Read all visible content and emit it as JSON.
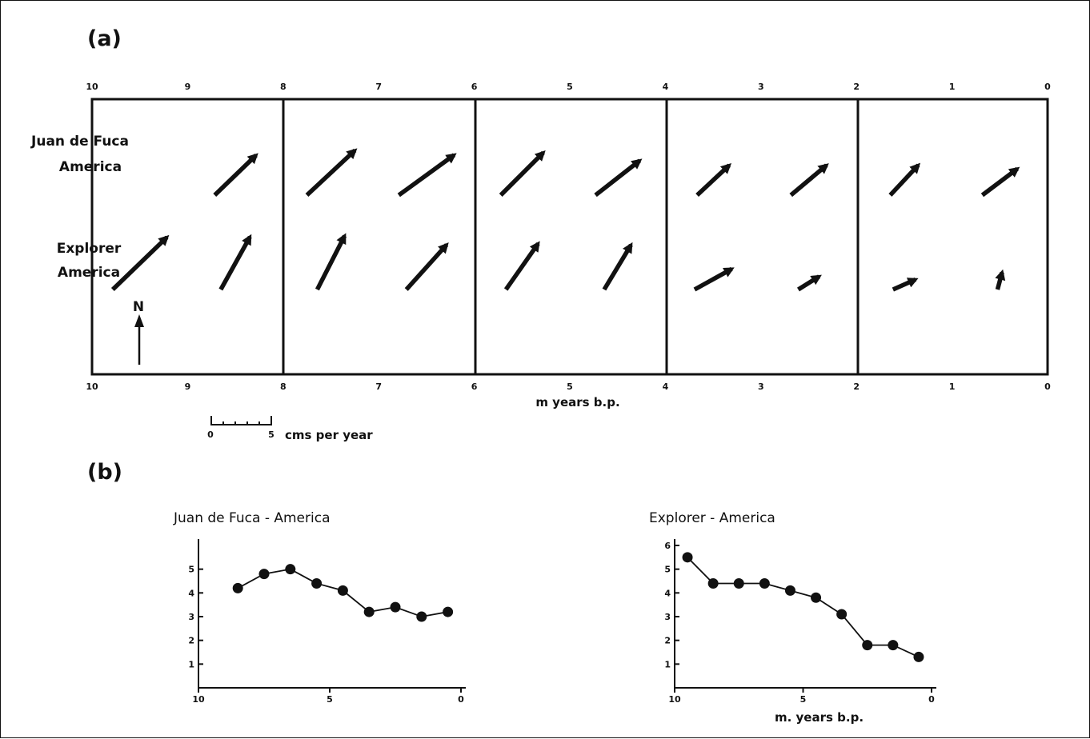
{
  "panel_a": {
    "label": "(a)",
    "top_axis_ticks": [
      "10",
      "9",
      "8",
      "7",
      "6",
      "5",
      "4",
      "3",
      "2",
      "1",
      "0"
    ],
    "bottom_axis_ticks": [
      "10",
      "9",
      "8",
      "7",
      "6",
      "5",
      "4",
      "3",
      "2",
      "1",
      "0"
    ],
    "xlabel": "m years b.p.",
    "rows": {
      "jdf_line1": "Juan de Fuca",
      "jdf_line2": "America",
      "exp_line1": "Explorer",
      "exp_line2": "America"
    },
    "north_label": "N",
    "scale_bar": {
      "min_label": "0",
      "max_label": "5",
      "unit": "cms per year",
      "length_cm_per_year": 5
    }
  },
  "panel_b": {
    "label": "(b)"
  },
  "chart_data": [
    {
      "type": "vector",
      "panel": "(a)",
      "xlabel": "m years b.p.",
      "xlim": [
        10,
        0
      ],
      "series": [
        {
          "name": "Juan de Fuca America",
          "vectors": [
            {
              "age": 8.5,
              "speed": 4.2,
              "azimuth_deg": 46
            },
            {
              "age": 7.5,
              "speed": 4.8,
              "azimuth_deg": 47
            },
            {
              "age": 6.5,
              "speed": 5.0,
              "azimuth_deg": 54
            },
            {
              "age": 5.5,
              "speed": 4.4,
              "azimuth_deg": 45
            },
            {
              "age": 4.5,
              "speed": 4.1,
              "azimuth_deg": 52
            },
            {
              "age": 3.5,
              "speed": 3.2,
              "azimuth_deg": 47
            },
            {
              "age": 2.5,
              "speed": 3.4,
              "azimuth_deg": 50
            },
            {
              "age": 1.5,
              "speed": 3.0,
              "azimuth_deg": 43
            },
            {
              "age": 0.5,
              "speed": 3.2,
              "azimuth_deg": 53
            }
          ]
        },
        {
          "name": "Explorer America",
          "vectors": [
            {
              "age": 9.5,
              "speed": 5.5,
              "azimuth_deg": 46
            },
            {
              "age": 8.5,
              "speed": 4.4,
              "azimuth_deg": 29
            },
            {
              "age": 7.5,
              "speed": 4.4,
              "azimuth_deg": 27
            },
            {
              "age": 6.5,
              "speed": 4.4,
              "azimuth_deg": 42
            },
            {
              "age": 5.5,
              "speed": 4.1,
              "azimuth_deg": 35
            },
            {
              "age": 4.5,
              "speed": 3.8,
              "azimuth_deg": 31
            },
            {
              "age": 3.5,
              "speed": 3.1,
              "azimuth_deg": 61
            },
            {
              "age": 2.5,
              "speed": 1.8,
              "azimuth_deg": 58
            },
            {
              "age": 1.5,
              "speed": 1.8,
              "azimuth_deg": 66
            },
            {
              "age": 0.5,
              "speed": 1.3,
              "azimuth_deg": 15
            }
          ]
        }
      ]
    },
    {
      "type": "line",
      "panel": "(b)",
      "title": "Juan de Fuca - America",
      "xlabel": "",
      "ylabel": "",
      "xlim": [
        10,
        0
      ],
      "ylim": [
        0,
        6
      ],
      "xticks": [
        "10",
        "5",
        "0"
      ],
      "yticks": [
        "1",
        "2",
        "3",
        "4",
        "5"
      ],
      "x": [
        8.5,
        7.5,
        6.5,
        5.5,
        4.5,
        3.5,
        2.5,
        1.5,
        0.5
      ],
      "values": [
        4.2,
        4.8,
        5.0,
        4.4,
        4.1,
        3.2,
        3.4,
        3.0,
        3.2
      ]
    },
    {
      "type": "line",
      "panel": "(b)",
      "title": "Explorer - America",
      "xlabel": "m. years b.p.",
      "ylabel": "",
      "xlim": [
        10,
        0
      ],
      "ylim": [
        0,
        6
      ],
      "xticks": [
        "10",
        "5",
        "0"
      ],
      "yticks": [
        "1",
        "2",
        "3",
        "4",
        "5",
        "6"
      ],
      "x": [
        9.5,
        8.5,
        7.5,
        6.5,
        5.5,
        4.5,
        3.5,
        2.5,
        1.5,
        0.5
      ],
      "values": [
        5.5,
        4.4,
        4.4,
        4.4,
        4.1,
        3.8,
        3.1,
        1.8,
        1.8,
        1.3
      ]
    }
  ]
}
